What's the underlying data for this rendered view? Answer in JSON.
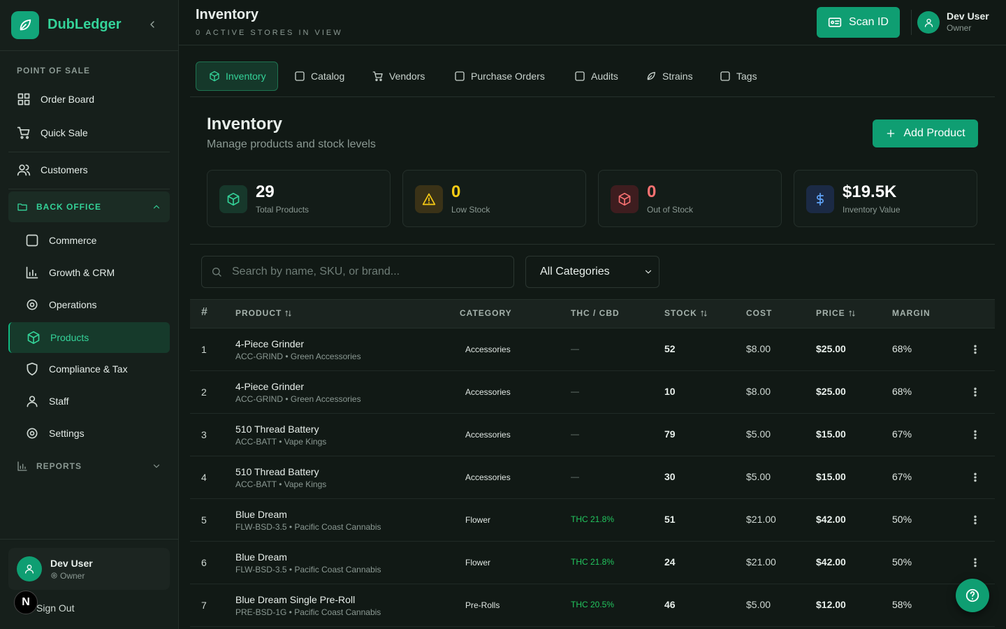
{
  "sidebar": {
    "brand": "DubLedger",
    "pos_heading": "POINT OF SALE",
    "pos_items": [
      "Order Board",
      "Quick Sale"
    ],
    "customers": "Customers",
    "back_office": "BACK OFFICE",
    "back_office_items": [
      "Commerce",
      "Growth & CRM",
      "Operations",
      "Products",
      "Compliance & Tax",
      "Staff",
      "Settings"
    ],
    "reports": "REPORTS",
    "user": {
      "name": "Dev User",
      "role": "Owner"
    },
    "sign_out": "Sign Out",
    "avatar_letter": "N"
  },
  "header": {
    "title": "Inventory",
    "subtitle": "0 ACTIVE STORES IN VIEW",
    "scan_button": "Scan ID",
    "user": {
      "name": "Dev User",
      "role": "Owner"
    }
  },
  "tabs": [
    "Inventory",
    "Catalog",
    "Vendors",
    "Purchase Orders",
    "Audits",
    "Strains",
    "Tags"
  ],
  "page": {
    "title": "Inventory",
    "subtitle": "Manage products and stock levels",
    "add_button": "Add Product"
  },
  "stats": [
    {
      "value": "29",
      "label": "Total Products"
    },
    {
      "value": "0",
      "label": "Low Stock"
    },
    {
      "value": "0",
      "label": "Out of Stock"
    },
    {
      "value": "$19.5K",
      "label": "Inventory Value"
    }
  ],
  "filters": {
    "search_placeholder": "Search by name, SKU, or brand...",
    "category_select": "All Categories"
  },
  "table": {
    "columns": [
      "#",
      "PRODUCT",
      "CATEGORY",
      "THC / CBD",
      "STOCK",
      "COST",
      "PRICE",
      "MARGIN"
    ],
    "rows": [
      {
        "num": "1",
        "product": "4-Piece Grinder",
        "sku": "ACC-GRIND • Green Accessories",
        "category": "Accessories",
        "thc": "—",
        "stock": "52",
        "cost": "$8.00",
        "price": "$25.00",
        "margin": "68%"
      },
      {
        "num": "2",
        "product": "4-Piece Grinder",
        "sku": "ACC-GRIND • Green Accessories",
        "category": "Accessories",
        "thc": "—",
        "stock": "10",
        "cost": "$8.00",
        "price": "$25.00",
        "margin": "68%"
      },
      {
        "num": "3",
        "product": "510 Thread Battery",
        "sku": "ACC-BATT • Vape Kings",
        "category": "Accessories",
        "thc": "—",
        "stock": "79",
        "cost": "$5.00",
        "price": "$15.00",
        "margin": "67%"
      },
      {
        "num": "4",
        "product": "510 Thread Battery",
        "sku": "ACC-BATT • Vape Kings",
        "category": "Accessories",
        "thc": "—",
        "stock": "30",
        "cost": "$5.00",
        "price": "$15.00",
        "margin": "67%"
      },
      {
        "num": "5",
        "product": "Blue Dream",
        "sku": "FLW-BSD-3.5 • Pacific Coast Cannabis",
        "category": "Flower",
        "thc": "THC 21.8%",
        "stock": "51",
        "cost": "$21.00",
        "price": "$42.00",
        "margin": "50%"
      },
      {
        "num": "6",
        "product": "Blue Dream",
        "sku": "FLW-BSD-3.5 • Pacific Coast Cannabis",
        "category": "Flower",
        "thc": "THC 21.8%",
        "stock": "24",
        "cost": "$21.00",
        "price": "$42.00",
        "margin": "50%"
      },
      {
        "num": "7",
        "product": "Blue Dream Single Pre-Roll",
        "sku": "PRE-BSD-1G • Pacific Coast Cannabis",
        "category": "Pre-Rolls",
        "thc": "THC 20.5%",
        "stock": "46",
        "cost": "$5.00",
        "price": "$12.00",
        "margin": "58%"
      }
    ]
  }
}
